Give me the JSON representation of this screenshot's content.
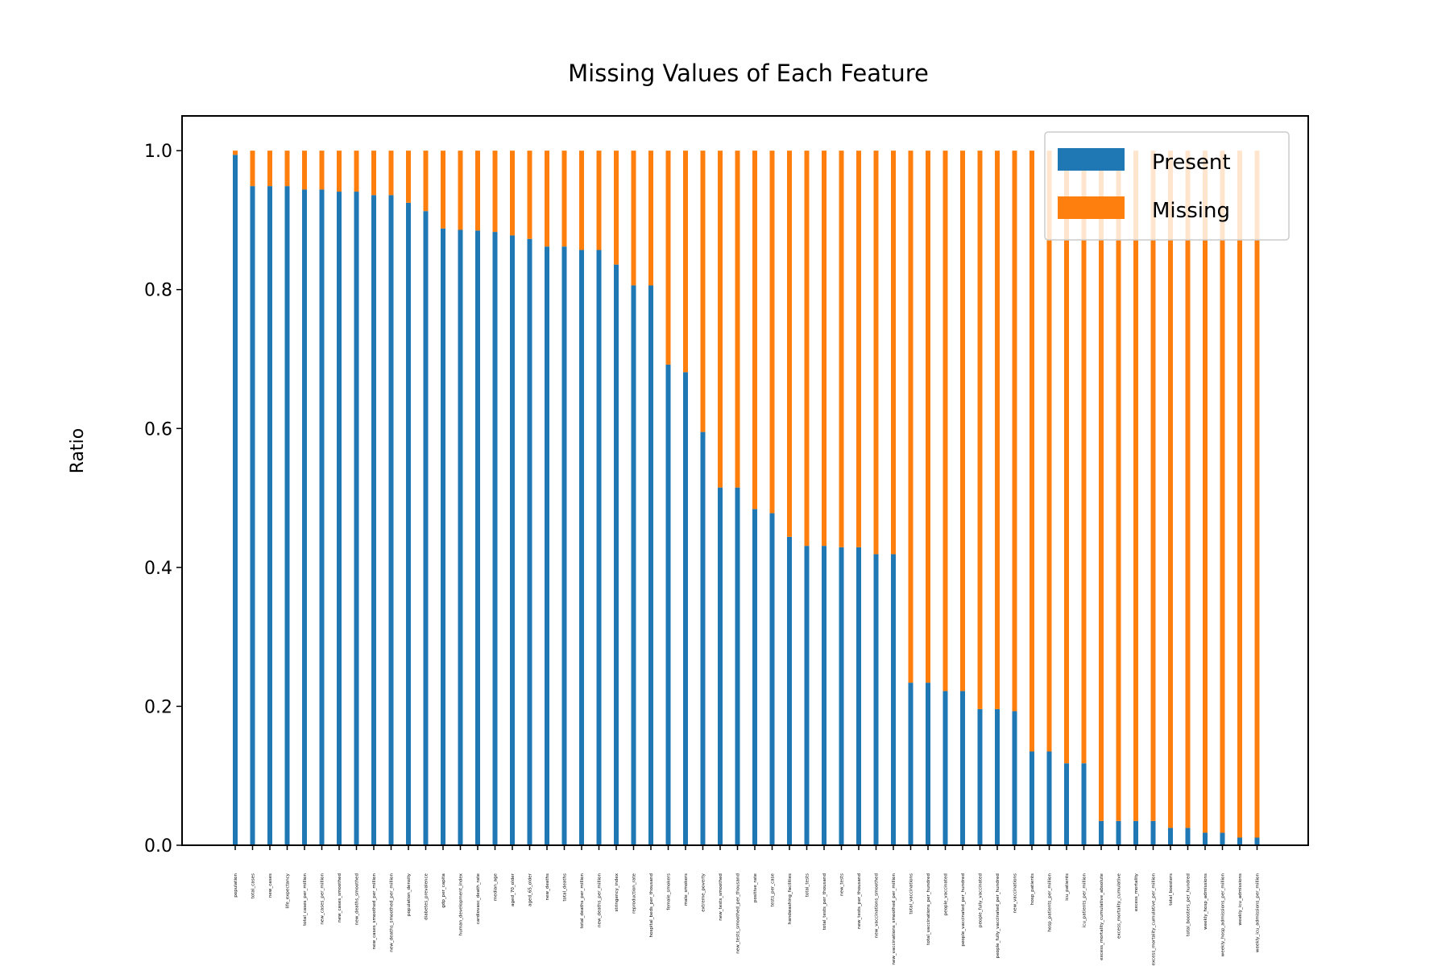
{
  "chart_data": {
    "type": "bar",
    "stacked": true,
    "title": "Missing Values of Each Feature",
    "xlabel": "",
    "ylabel": "Ratio",
    "ylim": [
      0,
      1.05
    ],
    "yticks": [
      "0.0",
      "0.2",
      "0.4",
      "0.6",
      "0.8",
      "1.0"
    ],
    "grid": false,
    "legend_position": "top-right",
    "categories": [
      "population",
      "total_cases",
      "new_cases",
      "life_expectancy",
      "total_cases_per_million",
      "new_cases_per_million",
      "new_cases_smoothed",
      "new_deaths_smoothed",
      "new_cases_smoothed_per_million",
      "new_deaths_smoothed_per_million",
      "population_density",
      "diabetes_prevalence",
      "gdp_per_capita",
      "human_development_index",
      "cardiovasc_death_rate",
      "median_age",
      "aged_70_older",
      "aged_65_older",
      "new_deaths",
      "total_deaths",
      "total_deaths_per_million",
      "new_deaths_per_million",
      "stringency_index",
      "reproduction_rate",
      "hospital_beds_per_thousand",
      "female_smokers",
      "male_smokers",
      "extreme_poverty",
      "new_tests_smoothed",
      "new_tests_smoothed_per_thousand",
      "positive_rate",
      "tests_per_case",
      "handwashing_facilities",
      "total_tests",
      "total_tests_per_thousand",
      "new_tests",
      "new_tests_per_thousand",
      "new_vaccinations_smoothed",
      "new_vaccinations_smoothed_per_million",
      "total_vaccinations",
      "total_vaccinations_per_hundred",
      "people_vaccinated",
      "people_vaccinated_per_hundred",
      "people_fully_vaccinated",
      "people_fully_vaccinated_per_hundred",
      "new_vaccinations",
      "hosp_patients",
      "hosp_patients_per_million",
      "icu_patients",
      "icu_patients_per_million",
      "excess_mortality_cumulative_absolute",
      "excess_mortality_cumulative",
      "excess_mortality",
      "excess_mortality_cumulative_per_million",
      "total_boosters",
      "total_boosters_per_hundred",
      "weekly_hosp_admissions",
      "weekly_hosp_admissions_per_million",
      "weekly_icu_admissions",
      "weekly_icu_admissions_per_million"
    ],
    "series": [
      {
        "name": "Present",
        "color": "#1f77b4",
        "values": [
          0.994,
          0.949,
          0.949,
          0.949,
          0.944,
          0.944,
          0.941,
          0.941,
          0.936,
          0.936,
          0.925,
          0.913,
          0.888,
          0.886,
          0.885,
          0.883,
          0.878,
          0.873,
          0.862,
          0.862,
          0.857,
          0.857,
          0.836,
          0.806,
          0.806,
          0.692,
          0.681,
          0.595,
          0.515,
          0.515,
          0.484,
          0.478,
          0.444,
          0.431,
          0.431,
          0.429,
          0.429,
          0.419,
          0.419,
          0.234,
          0.234,
          0.222,
          0.222,
          0.196,
          0.196,
          0.193,
          0.135,
          0.135,
          0.118,
          0.118,
          0.035,
          0.035,
          0.035,
          0.035,
          0.025,
          0.025,
          0.018,
          0.018,
          0.011,
          0.011
        ]
      },
      {
        "name": "Missing",
        "color": "#ff7f0e",
        "values": [
          0.006,
          0.051,
          0.051,
          0.051,
          0.056,
          0.056,
          0.059,
          0.059,
          0.064,
          0.064,
          0.075,
          0.087,
          0.112,
          0.114,
          0.115,
          0.117,
          0.122,
          0.127,
          0.138,
          0.138,
          0.143,
          0.143,
          0.164,
          0.194,
          0.194,
          0.308,
          0.319,
          0.405,
          0.485,
          0.485,
          0.516,
          0.522,
          0.556,
          0.569,
          0.569,
          0.571,
          0.571,
          0.581,
          0.581,
          0.766,
          0.766,
          0.778,
          0.778,
          0.804,
          0.804,
          0.807,
          0.865,
          0.865,
          0.882,
          0.882,
          0.965,
          0.965,
          0.965,
          0.965,
          0.975,
          0.975,
          0.982,
          0.982,
          0.989,
          0.989
        ]
      }
    ]
  }
}
